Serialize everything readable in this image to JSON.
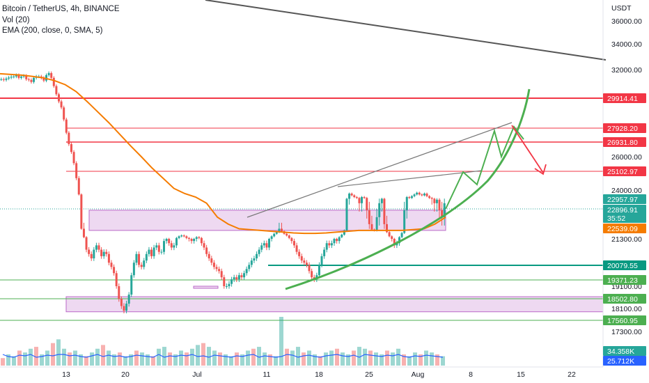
{
  "legend": {
    "symbol_line": "Bitcoin / TetherUS, 4h, BINANCE",
    "volume_line": "Vol (20)",
    "ema_line": "EMA (200, close, 0, SMA, 5)"
  },
  "chart_data": {
    "type": "candlestick",
    "title": "Bitcoin / TetherUS, 4h, BINANCE",
    "currency_label": "USDT",
    "x_tick_labels": [
      "13",
      "20",
      "Jul",
      "11",
      "18",
      "25",
      "Aug",
      "8",
      "15",
      "22"
    ],
    "y_tick_labels": [
      "36000.00",
      "34000.00",
      "32000.00",
      "26000.00",
      "24000.00",
      "21300.00",
      "19100.00",
      "18100.00",
      "17300.00"
    ],
    "y_tick_values": [
      36000,
      34000,
      32000,
      26000,
      24000,
      21300,
      19100,
      18100,
      17300
    ],
    "price_tags": [
      {
        "label": "29914.41",
        "value": 29914.41,
        "color": "#f23645"
      },
      {
        "label": "27928.20",
        "value": 27928.2,
        "color": "#f23645"
      },
      {
        "label": "26931.80",
        "value": 26931.8,
        "color": "#f23645"
      },
      {
        "label": "25102.97",
        "value": 25102.97,
        "color": "#f23645"
      },
      {
        "label": "22957.97",
        "value": 22957.97,
        "color": "#26a69a"
      },
      {
        "label": "22896.91",
        "value": 22896.91,
        "color": "#26a69a",
        "sublabel": "35:52"
      },
      {
        "label": "22539.09",
        "value": 22539.09,
        "color": "#f57c00"
      },
      {
        "label": "20079.55",
        "value": 20079.55,
        "color": "#089981"
      },
      {
        "label": "19371.23",
        "value": 19371.23,
        "color": "#4caf50"
      },
      {
        "label": "18502.80",
        "value": 18502.8,
        "color": "#4caf50"
      },
      {
        "label": "17560.95",
        "value": 17560.95,
        "color": "#4caf50"
      }
    ],
    "volume_tags": [
      {
        "label": "34.358K",
        "color": "#26a69a"
      },
      {
        "label": "25.712K",
        "color": "#2962ff"
      }
    ],
    "horizontal_levels": [
      29914.41,
      27928.2,
      26931.8,
      25102.97,
      20079.55,
      19371.23,
      18502.8,
      17560.95
    ],
    "zones": [
      {
        "from": 22300,
        "to": 22800
      },
      {
        "from": 17950,
        "to": 18600
      },
      {
        "from": 19000,
        "to": 19100
      }
    ],
    "price_series": [
      31300,
      31250,
      31350,
      31420,
      31480,
      31500,
      31600,
      31400,
      31500,
      31550,
      31300,
      31250,
      31100,
      31400,
      31500,
      31500,
      31400,
      31200,
      31600,
      31750,
      31400,
      30800,
      30200,
      29700,
      29300,
      28500,
      27600,
      26800,
      26300,
      25600,
      24700,
      23500,
      22500,
      21500,
      20800,
      20600,
      20400,
      20800,
      21000,
      20800,
      20500,
      20700,
      20600,
      20200,
      20000,
      19700,
      19100,
      18500,
      18200,
      18000,
      18300,
      18700,
      19600,
      20200,
      20600,
      20100,
      20000,
      20300,
      20600,
      20800,
      20500,
      20900,
      21000,
      20700,
      20700,
      21200,
      21300,
      21100,
      20900,
      21000,
      21400,
      21600,
      21700,
      21600,
      21400,
      21300,
      21200,
      21300,
      21500,
      21400,
      21100,
      20900,
      20600,
      20400,
      20200,
      20000,
      19900,
      19800,
      19500,
      19100,
      19100,
      19200,
      19400,
      19500,
      19400,
      19600,
      19500,
      19700,
      19900,
      20100,
      20300,
      20400,
      20600,
      20800,
      21000,
      21100,
      20900,
      21300,
      21600,
      21900,
      22100,
      22500,
      22200,
      21900,
      21700,
      21400,
      21200,
      21000,
      20700,
      20500,
      20300,
      20200,
      20100,
      19800,
      19500,
      19400,
      19600,
      20100,
      20500,
      20800,
      21100,
      21000,
      21100,
      21300,
      21200,
      21500,
      21800,
      22300,
      23000,
      23600,
      23400,
      23200,
      23100,
      22900,
      23200,
      23100,
      22800,
      22600,
      22400,
      22300,
      22700,
      22900,
      23000,
      22600,
      22100,
      21600,
      21300,
      21000,
      21100,
      21500,
      22000,
      22800,
      23200,
      23100,
      23300,
      23500,
      23700,
      23500,
      23400,
      23600,
      23300,
      23100,
      23000,
      22900,
      22950,
      22800,
      22700,
      22900
    ],
    "ema_series": [
      31700,
      31650,
      31600,
      31500,
      31400,
      31200,
      30900,
      30400,
      29700,
      29000,
      28300,
      27500,
      26700,
      26000,
      25300,
      24700,
      24100,
      23600,
      23200,
      22900,
      22700,
      22600,
      22500,
      22400,
      22300,
      22200,
      22100,
      22000,
      21950,
      21950,
      22000,
      22100,
      22200,
      22300,
      22300,
      22300,
      22300,
      22300,
      22400,
      22500,
      22600,
      22700
    ],
    "volume_series": [
      4,
      6,
      5,
      8,
      7,
      9,
      10,
      6,
      8,
      12,
      14,
      9,
      7,
      8,
      6,
      5,
      7,
      9,
      11,
      8,
      6,
      7,
      5,
      6,
      8,
      7,
      6,
      5,
      9,
      10,
      7,
      6,
      8,
      7,
      9,
      11,
      12,
      10,
      8,
      7,
      6,
      5,
      7,
      6,
      8,
      9,
      10,
      7,
      6,
      5,
      26,
      9,
      8,
      10,
      7,
      8,
      6,
      5,
      7,
      8,
      9,
      7,
      6,
      8,
      10,
      9,
      8,
      7,
      6,
      8,
      7,
      9,
      6,
      5,
      7,
      6,
      8,
      7,
      6,
      5
    ]
  }
}
